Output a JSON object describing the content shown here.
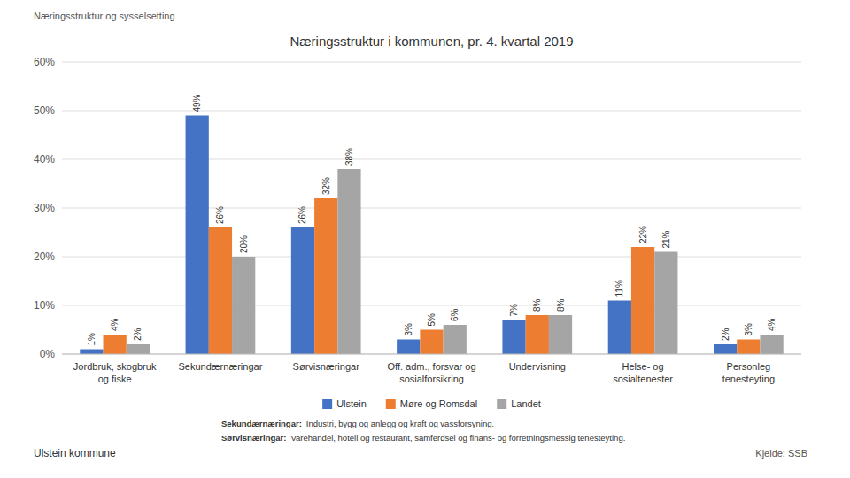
{
  "chart_data": {
    "type": "bar",
    "title": "Næringsstruktur i kommunen, pr. 4. kvartal 2019",
    "categories": [
      "Jordbruk, skogbruk\nog fiske",
      "Sekundærnæringar",
      "Sørvisnæringar",
      "Off. adm., forsvar og\nsosialforsikring",
      "Undervisning",
      "Helse- og\nsosialtenester",
      "Personleg\ntenesteyting"
    ],
    "series": [
      {
        "name": "Ulstein",
        "color": "#4472C4",
        "values": [
          1,
          49,
          26,
          3,
          7,
          11,
          2
        ],
        "value_labels": [
          "1%",
          "49%",
          "26%",
          "3%",
          "7%",
          "11%",
          "2%"
        ]
      },
      {
        "name": "Møre og Romsdal",
        "color": "#ED7D31",
        "values": [
          4,
          26,
          32,
          5,
          8,
          22,
          3
        ],
        "value_labels": [
          "4%",
          "26%",
          "32%",
          "5%",
          "8%",
          "22%",
          "3%"
        ]
      },
      {
        "name": "Landet",
        "color": "#A5A5A5",
        "values": [
          2,
          20,
          38,
          6,
          8,
          21,
          4
        ],
        "value_labels": [
          "2%",
          "20%",
          "38%",
          "6%",
          "8%",
          "21%",
          "4%"
        ]
      }
    ],
    "ylim": [
      0,
      60
    ],
    "yticks": [
      {
        "value": 0,
        "label": "0%"
      },
      {
        "value": 10,
        "label": "10%"
      },
      {
        "value": 20,
        "label": "20%"
      },
      {
        "value": 30,
        "label": "30%"
      },
      {
        "value": 40,
        "label": "40%"
      },
      {
        "value": 50,
        "label": "50%"
      },
      {
        "value": 60,
        "label": "60%"
      }
    ],
    "grid": true,
    "legend": "bottom",
    "data_labels": true,
    "annotations": [
      "Næringsstruktur og sysselsetting",
      "Ulstein kommune",
      "Kjelde: SSB",
      "Sekundærnæringar:",
      "Industri, bygg og anlegg og kraft og vassforsyning.",
      "Sørvisnæringar:",
      "Varehandel, hotell og restaurant, samferdsel og finans- og forretningsmessig tenesteyting."
    ]
  }
}
